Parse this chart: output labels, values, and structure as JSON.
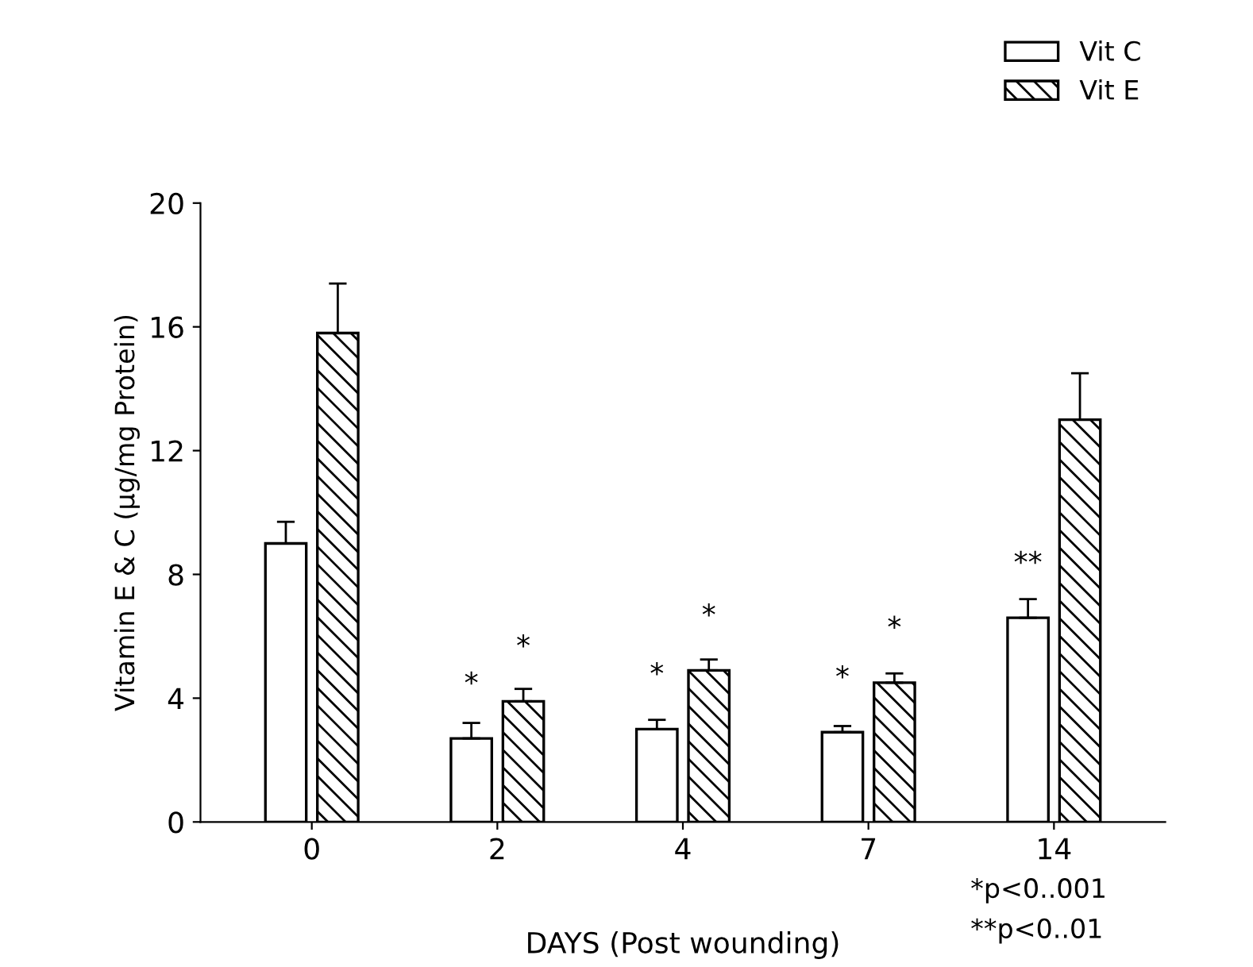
{
  "chart_data": {
    "type": "bar",
    "xlabel": "DAYS (Post wounding)",
    "ylabel": "Vitamin E & C (µg/mg Protein)",
    "categories": [
      "0",
      "2",
      "4",
      "7",
      "14"
    ],
    "series": [
      {
        "name": "Vit C",
        "color": "#ffffff",
        "values": [
          9.0,
          2.7,
          3.0,
          2.9,
          6.6
        ],
        "errors": [
          0.7,
          0.5,
          0.3,
          0.2,
          0.6
        ]
      },
      {
        "name": "Vit E",
        "color": "#000000",
        "values": [
          15.8,
          3.9,
          4.9,
          4.5,
          13.0
        ],
        "errors": [
          1.6,
          0.4,
          0.35,
          0.3,
          1.5
        ]
      }
    ],
    "ylim": [
      0,
      20
    ],
    "yticks": [
      0,
      4,
      8,
      12,
      16,
      20
    ],
    "grid": false,
    "legend": "top right",
    "annotations": [
      {
        "text": "*",
        "x": "2",
        "y": 2.7
      },
      {
        "text": "*",
        "x": "2",
        "y": 3.9
      },
      {
        "text": "*",
        "x": "4",
        "y": 3.0
      },
      {
        "text": "*",
        "x": "4",
        "y": 4.9
      },
      {
        "text": "*",
        "x": "7",
        "y": 2.9
      },
      {
        "text": "*",
        "x": "7",
        "y": 4.5
      },
      {
        "text": "**",
        "x": "14",
        "y": 6.6
      },
      "*p<0..001",
      "**p<0..01"
    ]
  }
}
